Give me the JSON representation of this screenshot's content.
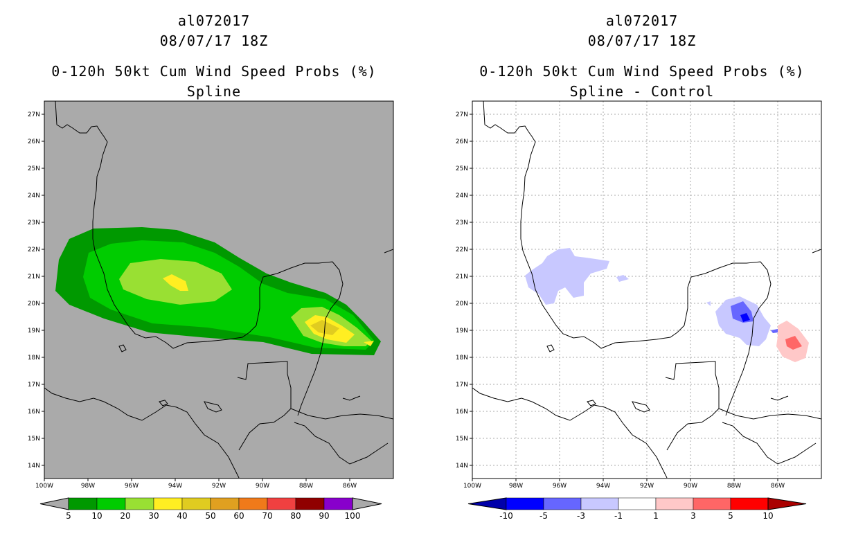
{
  "left_panel": {
    "title_storm": "al072017",
    "title_time": "08/07/17 18Z",
    "title_product": "0-120h 50kt Cum Wind Speed Probs (%)",
    "title_sub": "Spline",
    "lat_labels": [
      "27N",
      "26N",
      "25N",
      "24N",
      "23N",
      "22N",
      "21N",
      "20N",
      "19N",
      "18N",
      "17N",
      "16N",
      "15N",
      "14N"
    ],
    "lon_labels": [
      "100W",
      "98W",
      "96W",
      "94W",
      "92W",
      "90W",
      "88W",
      "86W"
    ],
    "background_color": "#aaaaaa",
    "colorbar": {
      "labels": [
        "5",
        "10",
        "20",
        "30",
        "40",
        "50",
        "60",
        "70",
        "80",
        "90",
        "100"
      ],
      "colors": [
        "#009900",
        "#00cc00",
        "#99e033",
        "#ffee22",
        "#e0cc20",
        "#e0a020",
        "#f07a1a",
        "#f04040",
        "#900000",
        "#8800cc"
      ]
    }
  },
  "right_panel": {
    "title_storm": "al072017",
    "title_time": "08/07/17 18Z",
    "title_product": "0-120h 50kt Cum Wind Speed Probs (%)",
    "title_sub": "Spline - Control",
    "lat_labels": [
      "27N",
      "26N",
      "25N",
      "24N",
      "23N",
      "22N",
      "21N",
      "20N",
      "19N",
      "18N",
      "17N",
      "16N",
      "15N",
      "14N"
    ],
    "lon_labels": [
      "100W",
      "98W",
      "96W",
      "94W",
      "92W",
      "90W",
      "88W",
      "86W"
    ],
    "background_color": "#ffffff",
    "colorbar": {
      "labels": [
        "-10",
        "-5",
        "-3",
        "-1",
        "1",
        "3",
        "5",
        "10"
      ],
      "colors": [
        "#0000aa",
        "#0000ff",
        "#6666ff",
        "#c8c8ff",
        "#ffffff",
        "#ffc8c8",
        "#ff6666",
        "#ff0000",
        "#aa0000"
      ]
    }
  }
}
